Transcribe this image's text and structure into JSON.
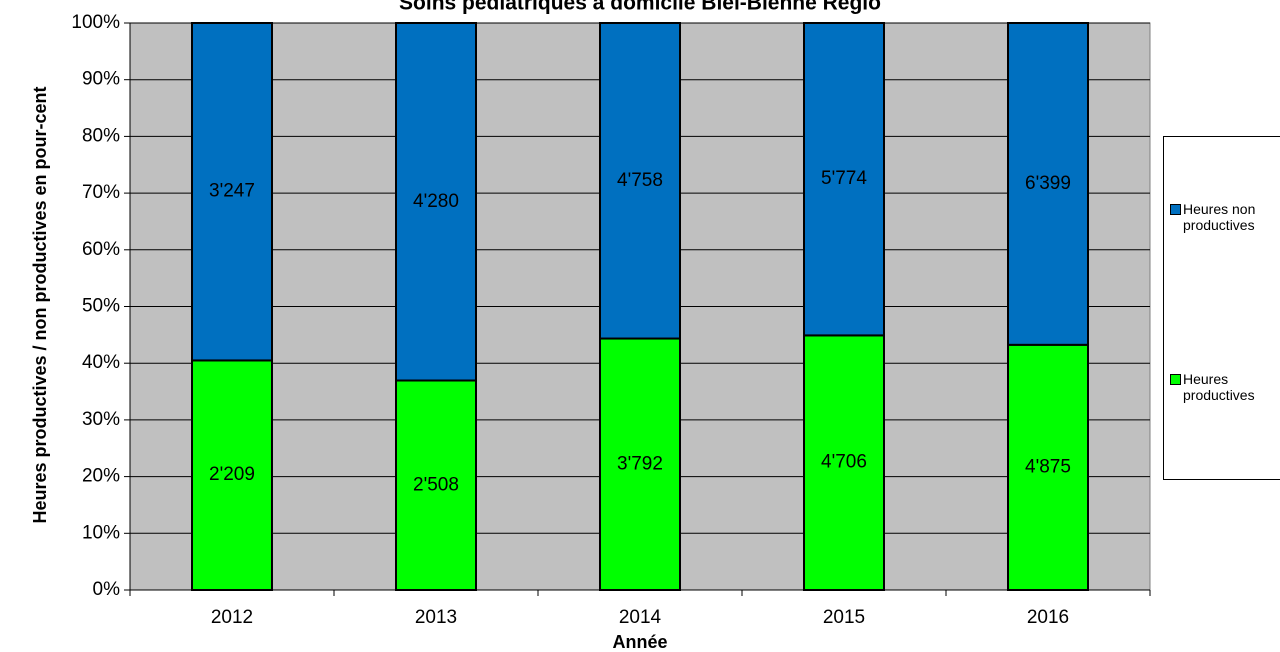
{
  "chart_data": {
    "type": "stacked_percent_bar",
    "title": "Soins pédiatriques à domicile Biel-Bienne Régio",
    "x_label": "Année",
    "y_label": "Heures productives / non productives en pour-cent",
    "categories": [
      "2012",
      "2013",
      "2014",
      "2015",
      "2016"
    ],
    "series": [
      {
        "name": "Heures productives",
        "color": "#00ff00",
        "values": [
          2209,
          2508,
          3792,
          4706,
          4875
        ],
        "value_labels": [
          "2'209",
          "2'508",
          "3'792",
          "4'706",
          "4'875"
        ]
      },
      {
        "name": "Heures non productives",
        "color": "#0070c0",
        "values": [
          3247,
          4280,
          4758,
          5774,
          6399
        ],
        "value_labels": [
          "3'247",
          "4'280",
          "4'758",
          "5'774",
          "6'399"
        ]
      }
    ],
    "ylim": [
      0,
      100
    ],
    "yticks": [
      {
        "value": 0,
        "label": "0%"
      },
      {
        "value": 10,
        "label": "10%"
      },
      {
        "value": 20,
        "label": "20%"
      },
      {
        "value": 30,
        "label": "30%"
      },
      {
        "value": 40,
        "label": "40%"
      },
      {
        "value": 50,
        "label": "50%"
      },
      {
        "value": 60,
        "label": "60%"
      },
      {
        "value": 70,
        "label": "70%"
      },
      {
        "value": 80,
        "label": "80%"
      },
      {
        "value": 90,
        "label": "90%"
      },
      {
        "value": 100,
        "label": "100%"
      }
    ],
    "grid": true,
    "plot_background": "#c0c0c0",
    "legend": "right"
  }
}
